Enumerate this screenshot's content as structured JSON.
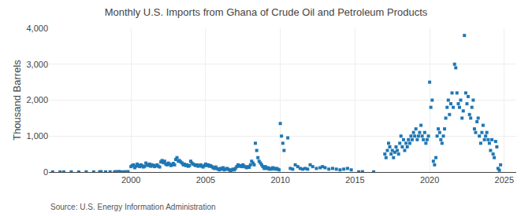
{
  "chart_data": {
    "type": "scatter",
    "title": "Monthly U.S. Imports from Ghana of Crude Oil and Petroleum Products",
    "y_label": "Thousand Barrels",
    "annotations": [
      "Source: U.S. Energy Information Administration"
    ],
    "marker": "square",
    "grid": true,
    "xlim": [
      1994.5,
      2025.8
    ],
    "xticks": [
      2000,
      2005,
      2010,
      2015,
      2020,
      2025
    ],
    "ylim": [
      0,
      4000
    ],
    "yticks": [
      0,
      {
        "value": 1000,
        "label": "1,000"
      },
      {
        "value": 2000,
        "label": "2,000"
      },
      {
        "value": 3000,
        "label": "3,000"
      },
      {
        "value": 4000,
        "label": "4,000"
      }
    ],
    "x": [
      1994.75,
      1995.25,
      1995.5,
      1996.0,
      1996.5,
      1997.0,
      1997.5,
      1997.9,
      1998.0,
      1998.3,
      1998.6,
      1998.9,
      1999.0,
      1999.2,
      1999.4,
      1999.6,
      1999.8,
      2000.0,
      2000.08,
      2000.17,
      2000.25,
      2000.33,
      2000.42,
      2000.5,
      2000.58,
      2000.67,
      2000.75,
      2000.83,
      2000.92,
      2001.0,
      2001.08,
      2001.17,
      2001.25,
      2001.33,
      2001.42,
      2001.5,
      2001.58,
      2001.67,
      2001.75,
      2001.83,
      2001.92,
      2002.0,
      2002.08,
      2002.17,
      2002.25,
      2002.33,
      2002.42,
      2002.5,
      2002.58,
      2002.67,
      2002.75,
      2002.83,
      2002.92,
      2003.0,
      2003.08,
      2003.17,
      2003.25,
      2003.33,
      2003.42,
      2003.5,
      2003.58,
      2003.67,
      2003.75,
      2003.83,
      2003.92,
      2004.0,
      2004.08,
      2004.17,
      2004.25,
      2004.33,
      2004.42,
      2004.5,
      2004.58,
      2004.67,
      2004.75,
      2004.83,
      2004.92,
      2005.0,
      2005.08,
      2005.17,
      2005.25,
      2005.33,
      2005.42,
      2005.5,
      2005.58,
      2005.67,
      2005.75,
      2005.83,
      2005.92,
      2006.0,
      2006.08,
      2006.17,
      2006.25,
      2006.33,
      2006.42,
      2006.5,
      2006.58,
      2006.67,
      2006.75,
      2006.83,
      2006.92,
      2007.0,
      2007.08,
      2007.17,
      2007.25,
      2007.33,
      2007.42,
      2007.5,
      2007.58,
      2007.67,
      2007.75,
      2007.83,
      2007.92,
      2008.0,
      2008.08,
      2008.17,
      2008.25,
      2008.33,
      2008.42,
      2008.5,
      2008.58,
      2008.67,
      2008.75,
      2008.83,
      2008.92,
      2009.0,
      2009.08,
      2009.17,
      2009.25,
      2009.33,
      2009.42,
      2009.5,
      2009.58,
      2009.67,
      2009.75,
      2009.83,
      2009.92,
      2010.0,
      2010.08,
      2010.17,
      2010.25,
      2010.5,
      2010.67,
      2010.83,
      2011.0,
      2011.17,
      2011.33,
      2011.5,
      2011.67,
      2011.83,
      2012.0,
      2012.17,
      2012.42,
      2012.67,
      2012.83,
      2013.0,
      2013.25,
      2013.5,
      2013.75,
      2014.0,
      2014.25,
      2014.5,
      2014.75,
      2015.25,
      2015.5,
      2016.25,
      2017.0,
      2017.08,
      2017.17,
      2017.25,
      2017.33,
      2017.42,
      2017.5,
      2017.58,
      2017.67,
      2017.75,
      2017.83,
      2017.92,
      2018.0,
      2018.08,
      2018.17,
      2018.25,
      2018.33,
      2018.42,
      2018.5,
      2018.58,
      2018.67,
      2018.75,
      2018.83,
      2018.92,
      2019.0,
      2019.08,
      2019.17,
      2019.25,
      2019.33,
      2019.42,
      2019.5,
      2019.58,
      2019.67,
      2019.75,
      2019.83,
      2019.92,
      2020.0,
      2020.08,
      2020.17,
      2020.25,
      2020.33,
      2020.42,
      2020.5,
      2020.58,
      2020.67,
      2020.75,
      2020.83,
      2020.92,
      2021.0,
      2021.08,
      2021.17,
      2021.25,
      2021.33,
      2021.42,
      2021.5,
      2021.58,
      2021.67,
      2021.75,
      2021.83,
      2021.92,
      2022.0,
      2022.08,
      2022.17,
      2022.25,
      2022.33,
      2022.42,
      2022.5,
      2022.58,
      2022.67,
      2022.75,
      2022.83,
      2022.92,
      2023.0,
      2023.08,
      2023.17,
      2023.25,
      2023.33,
      2023.42,
      2023.5,
      2023.58,
      2023.67,
      2023.75,
      2023.83,
      2023.92,
      2024.0,
      2024.08,
      2024.17,
      2024.25,
      2024.33,
      2024.42,
      2024.5,
      2024.58,
      2024.67,
      2024.75
    ],
    "values": [
      2,
      3,
      1,
      4,
      2,
      5,
      3,
      6,
      8,
      4,
      6,
      3,
      10,
      15,
      5,
      8,
      12,
      150,
      180,
      200,
      120,
      160,
      220,
      180,
      150,
      200,
      170,
      140,
      160,
      250,
      200,
      180,
      220,
      160,
      200,
      180,
      150,
      180,
      200,
      160,
      140,
      280,
      320,
      260,
      300,
      220,
      200,
      250,
      220,
      180,
      200,
      240,
      200,
      350,
      400,
      300,
      320,
      280,
      250,
      200,
      220,
      180,
      200,
      160,
      180,
      300,
      250,
      220,
      200,
      180,
      200,
      160,
      180,
      200,
      160,
      140,
      180,
      220,
      180,
      200,
      160,
      180,
      150,
      120,
      100,
      140,
      100,
      80,
      60,
      100,
      80,
      120,
      60,
      80,
      100,
      80,
      60,
      40,
      60,
      80,
      60,
      100,
      150,
      200,
      160,
      180,
      150,
      200,
      160,
      140,
      120,
      150,
      130,
      200,
      300,
      250,
      200,
      800,
      600,
      400,
      300,
      250,
      200,
      150,
      100,
      150,
      100,
      120,
      80,
      100,
      80,
      120,
      100,
      80,
      100,
      80,
      60,
      1350,
      1000,
      800,
      600,
      950,
      100,
      80,
      200,
      150,
      100,
      80,
      100,
      80,
      200,
      150,
      100,
      120,
      150,
      120,
      80,
      100,
      80,
      60,
      80,
      100,
      60,
      5,
      8,
      5,
      500,
      400,
      600,
      800,
      700,
      500,
      600,
      400,
      550,
      700,
      600,
      500,
      800,
      1000,
      700,
      900,
      600,
      800,
      700,
      900,
      800,
      1000,
      900,
      1100,
      1000,
      1200,
      900,
      1000,
      1100,
      1300,
      1000,
      900,
      1100,
      800,
      900,
      1000,
      2500,
      1800,
      2000,
      300,
      200,
      400,
      1000,
      1200,
      1100,
      900,
      800,
      1000,
      1200,
      1500,
      1800,
      2000,
      1600,
      1900,
      2200,
      1800,
      3000,
      2900,
      2200,
      1900,
      1800,
      2000,
      1500,
      1700,
      3800,
      2200,
      1900,
      2100,
      1600,
      1500,
      1800,
      2000,
      1200,
      1100,
      1400,
      1500,
      1000,
      800,
      1100,
      1300,
      900,
      1000,
      1100,
      900,
      800,
      600,
      900,
      500,
      400,
      850,
      700,
      100,
      50,
      200
    ]
  }
}
